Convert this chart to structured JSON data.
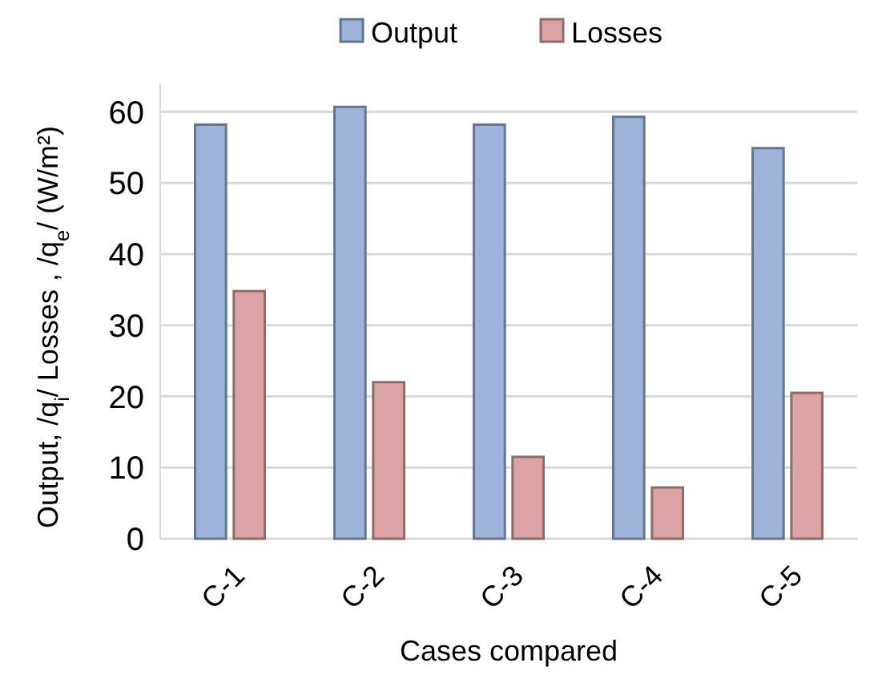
{
  "chart_data": {
    "type": "bar",
    "xlabel": "Cases compared",
    "ylabel": "Output, /q$_{i}$/ Losses , /q$_{e}$/  (W/m²)",
    "categories": [
      "C-1",
      "C-2",
      "C-3",
      "C-4",
      "C-5"
    ],
    "series": [
      {
        "name": "Output",
        "color": "#9db3da",
        "values": [
          58.2,
          60.7,
          58.2,
          59.3,
          54.9
        ]
      },
      {
        "name": "Losses",
        "color": "#dba3a3",
        "values": [
          34.8,
          22.0,
          11.5,
          7.2,
          20.5
        ]
      }
    ],
    "ylim": [
      0,
      64
    ],
    "yticks": [
      0,
      10,
      20,
      30,
      40,
      50,
      60
    ],
    "grid": "y",
    "legend": "top"
  }
}
